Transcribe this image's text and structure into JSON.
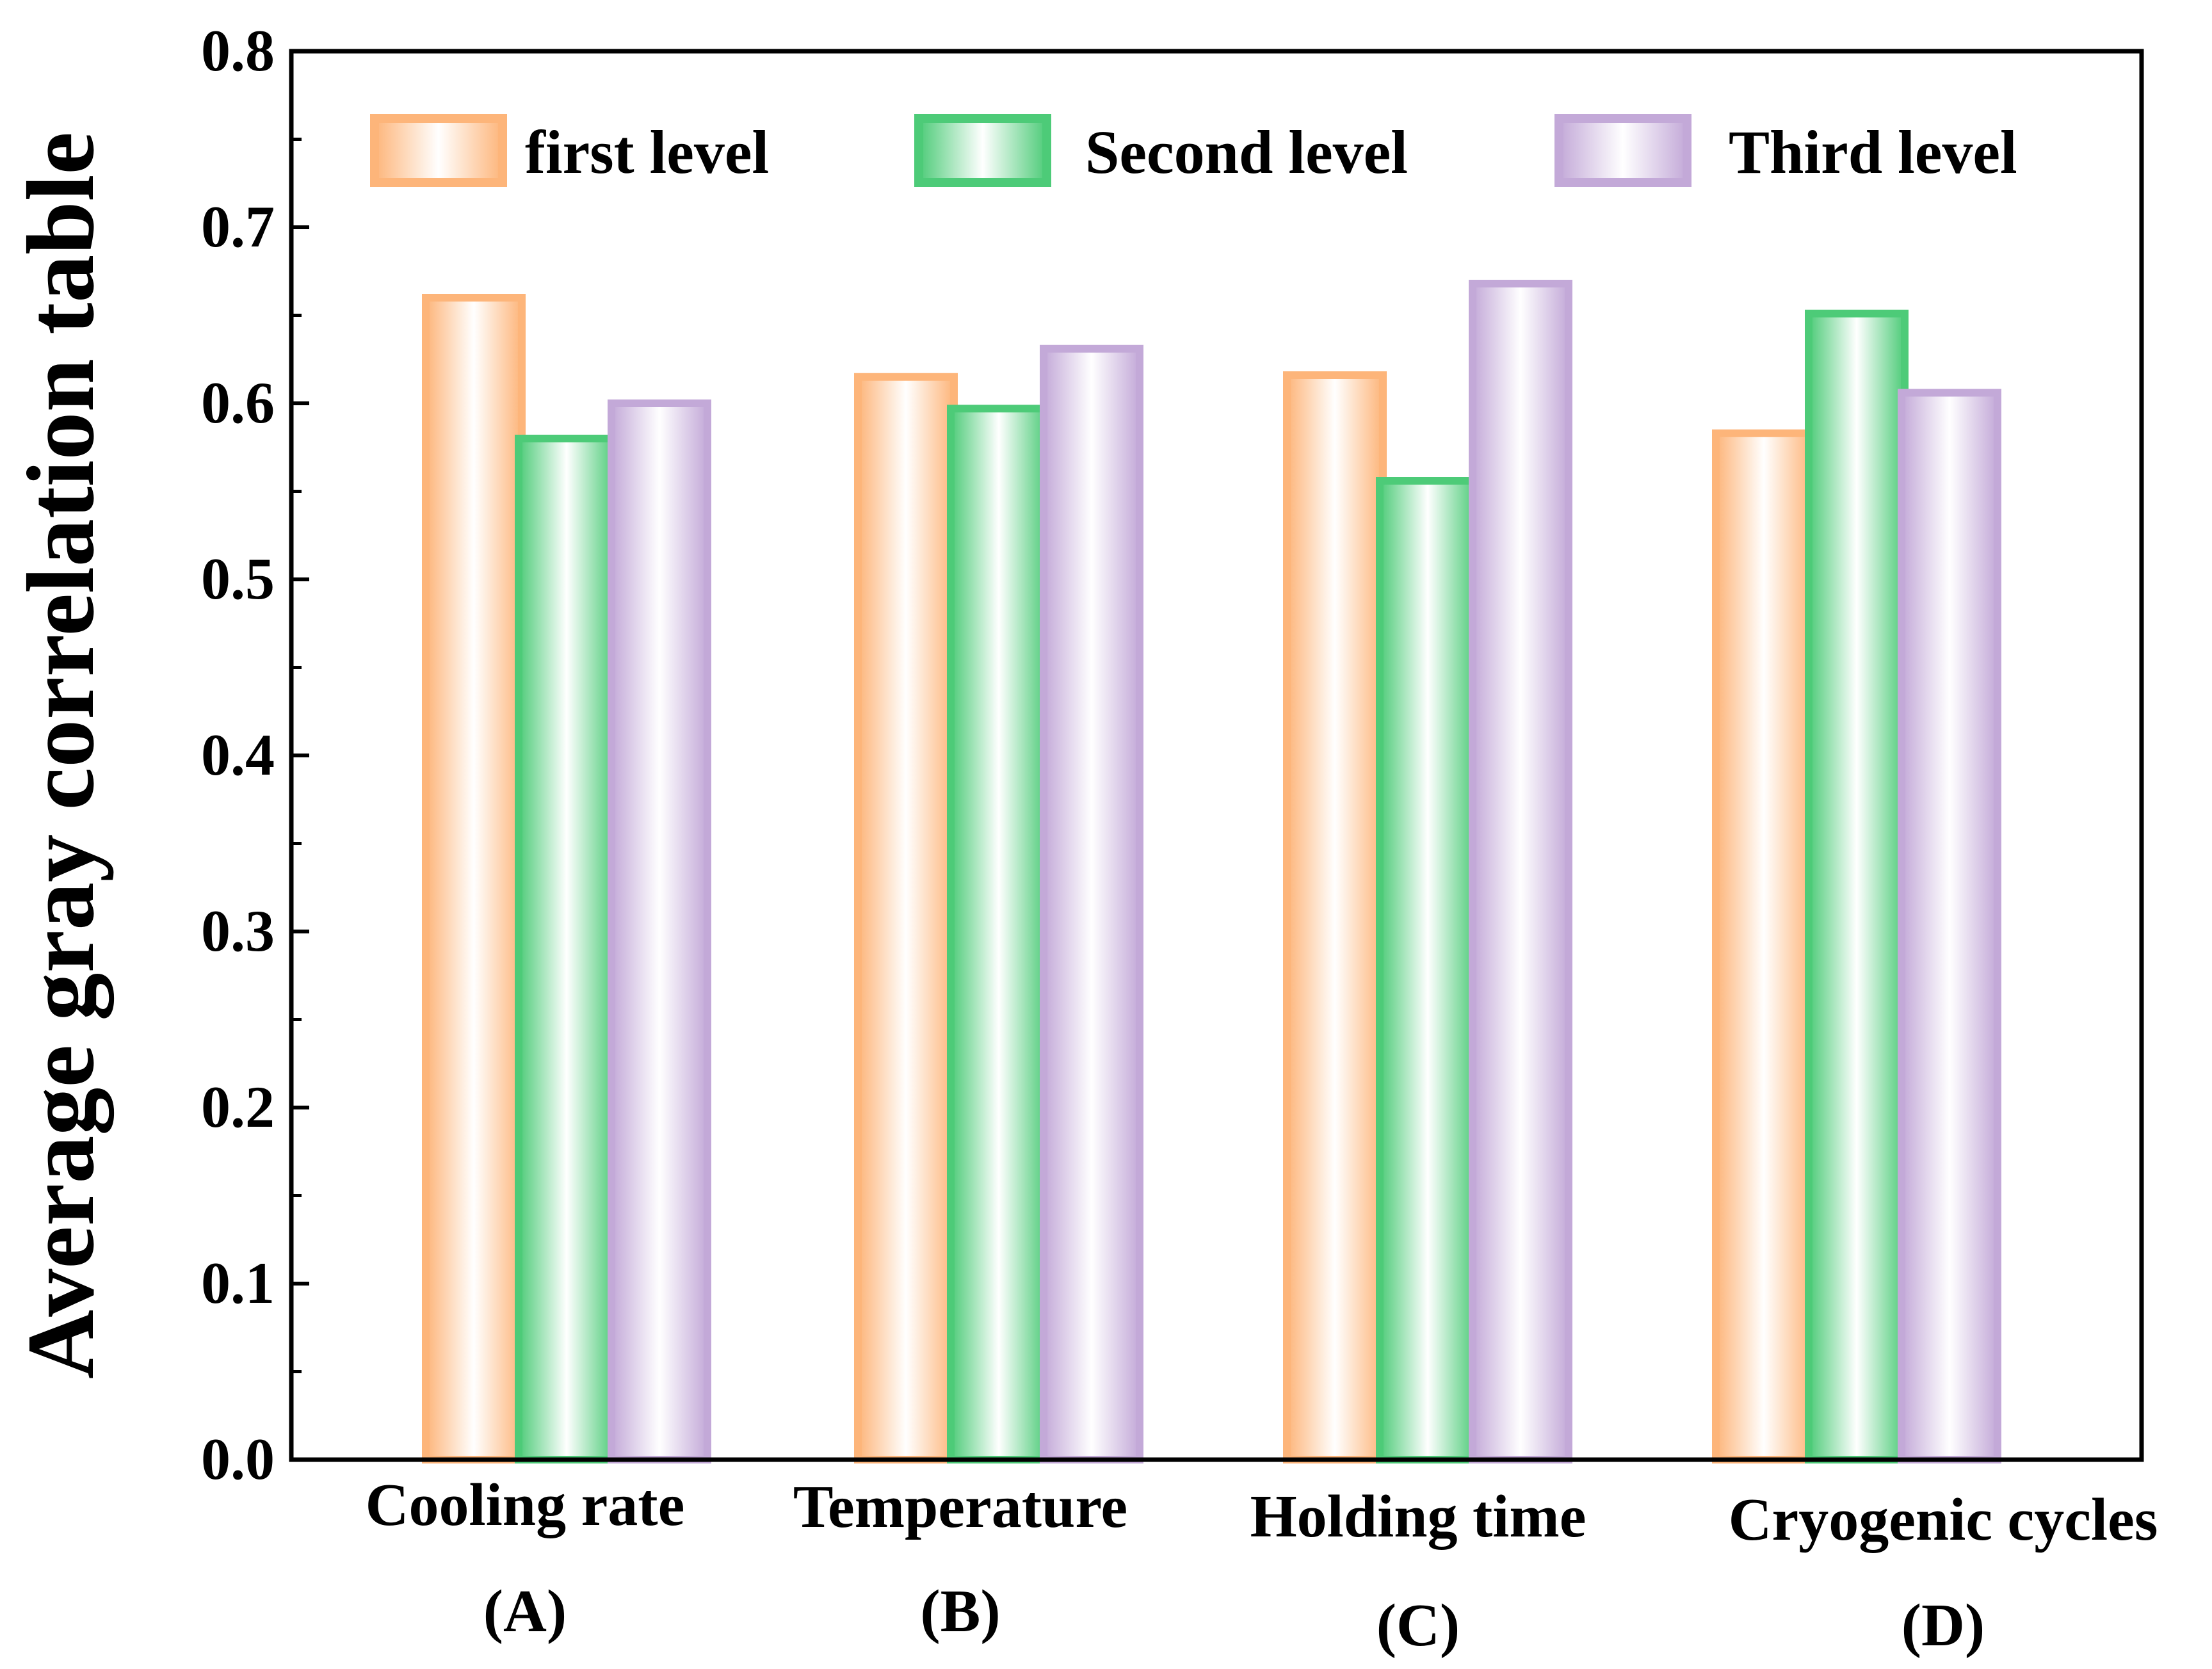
{
  "chart_data": {
    "type": "bar",
    "title": "",
    "xlabel": "",
    "ylabel": "Average gray correlation table",
    "ylim": [
      0,
      0.8
    ],
    "yticks": [
      "0.0",
      "0.1",
      "0.2",
      "0.3",
      "0.4",
      "0.5",
      "0.6",
      "0.7",
      "0.8"
    ],
    "categories": [
      "Cooling rate",
      "Temperature",
      "Holding time",
      "Cryogenic cycles"
    ],
    "category_codes": [
      "(A)",
      "(B)",
      "(C)",
      "(D)"
    ],
    "series": [
      {
        "name": "first level",
        "color": "#FDB57A",
        "values": [
          0.66,
          0.615,
          0.616,
          0.583
        ]
      },
      {
        "name": "Second level",
        "color": "#4DCB78",
        "values": [
          0.58,
          0.597,
          0.556,
          0.651
        ]
      },
      {
        "name": "Third level",
        "color": "#C3A9D8",
        "values": [
          0.6,
          0.631,
          0.668,
          0.606
        ]
      }
    ],
    "legend_position": "top",
    "grid": false
  }
}
